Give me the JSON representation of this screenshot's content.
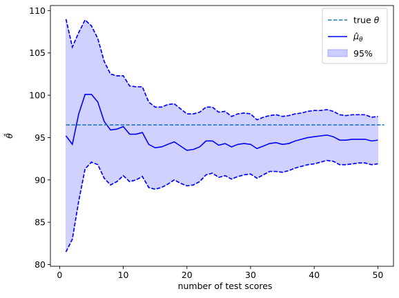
{
  "chart_data": {
    "type": "line",
    "title": "",
    "xlabel": "number of test scores",
    "ylabel": "θ̂",
    "xlim": [
      -1.45,
      52.45
    ],
    "ylim": [
      79.8,
      110.6
    ],
    "xticks": [
      0,
      10,
      20,
      30,
      40,
      50
    ],
    "yticks": [
      80,
      85,
      90,
      95,
      100,
      105,
      110
    ],
    "grid": false,
    "legend_position": "top-right",
    "x": [
      1,
      2,
      3,
      4,
      5,
      6,
      7,
      8,
      9,
      10,
      11,
      12,
      13,
      14,
      15,
      16,
      17,
      18,
      19,
      20,
      21,
      22,
      23,
      24,
      25,
      26,
      27,
      28,
      29,
      30,
      31,
      32,
      33,
      34,
      35,
      36,
      37,
      38,
      39,
      40,
      41,
      42,
      43,
      44,
      45,
      46,
      47,
      48,
      49,
      50
    ],
    "series": [
      {
        "name": "true θ",
        "kind": "dashed-line",
        "color": "#1f77b4",
        "values": [
          96.5,
          96.5
        ],
        "x": [
          1,
          51
        ]
      },
      {
        "name": "μ̂θ",
        "kind": "line",
        "color": "#0000ff",
        "values": [
          95.2,
          94.2,
          97.8,
          100.1,
          100.1,
          99.2,
          96.9,
          95.9,
          96.0,
          96.3,
          95.4,
          95.4,
          95.6,
          94.2,
          93.8,
          93.9,
          94.2,
          94.5,
          94.0,
          93.5,
          93.6,
          93.9,
          94.6,
          94.6,
          94.1,
          94.3,
          93.9,
          94.2,
          94.3,
          94.2,
          93.7,
          94.0,
          94.3,
          94.4,
          94.2,
          94.3,
          94.6,
          94.8,
          95.0,
          95.1,
          95.2,
          95.3,
          95.1,
          94.7,
          94.7,
          94.8,
          94.8,
          94.8,
          94.6,
          94.7
        ]
      },
      {
        "name": "95%",
        "kind": "band",
        "color": "#0000ff",
        "lower": [
          81.5,
          83.0,
          87.5,
          91.3,
          92.1,
          91.8,
          90.2,
          89.4,
          89.8,
          90.5,
          89.8,
          90.0,
          90.4,
          89.1,
          88.9,
          89.1,
          89.5,
          90.0,
          89.6,
          89.3,
          89.4,
          89.8,
          90.6,
          90.8,
          90.3,
          90.5,
          90.1,
          90.4,
          90.6,
          90.7,
          90.2,
          90.6,
          91.0,
          91.0,
          90.9,
          91.1,
          91.4,
          91.6,
          91.8,
          91.9,
          92.1,
          92.3,
          92.2,
          91.8,
          91.8,
          91.9,
          92.0,
          92.0,
          91.8,
          91.9
        ],
        "upper": [
          109.0,
          105.7,
          107.4,
          108.9,
          108.2,
          106.7,
          104.0,
          102.5,
          102.3,
          102.3,
          101.1,
          101.0,
          101.0,
          99.2,
          98.6,
          98.6,
          98.9,
          99.0,
          98.4,
          97.8,
          97.8,
          98.0,
          98.6,
          98.6,
          98.0,
          98.1,
          97.5,
          97.8,
          97.9,
          97.8,
          97.1,
          97.4,
          97.6,
          97.7,
          97.5,
          97.6,
          97.8,
          97.9,
          98.1,
          98.2,
          98.2,
          98.3,
          98.1,
          97.7,
          97.6,
          97.7,
          97.7,
          97.7,
          97.4,
          97.5
        ]
      }
    ],
    "colors": {
      "true_theta": "#1f77b4",
      "estimate": "#0000ff",
      "band_fill": "#ccccff"
    }
  }
}
